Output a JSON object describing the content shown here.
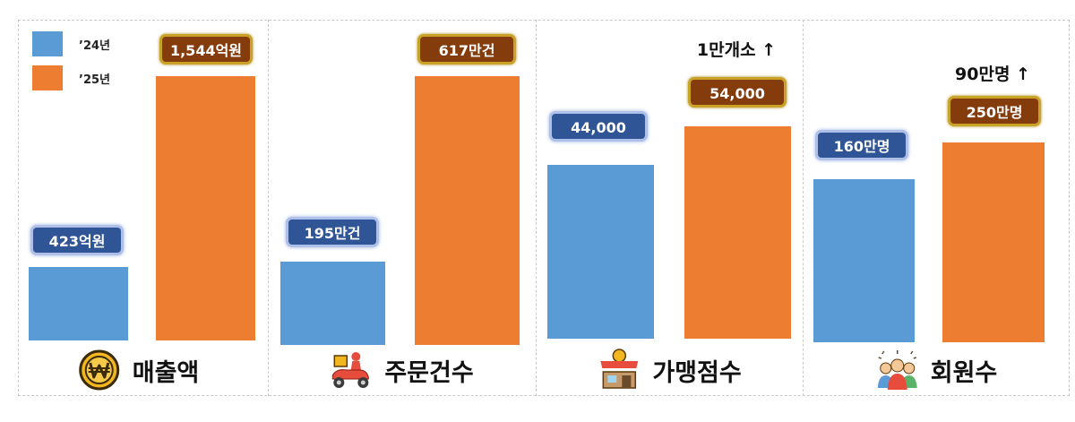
{
  "chart_data": [
    {
      "type": "bar",
      "title": "매출액",
      "categories": [
        "’24년",
        "’25년"
      ],
      "values": [
        423,
        1544
      ],
      "data_labels": [
        "423억원",
        "1,544억원"
      ],
      "increase_label": "",
      "icon": "won-coin-icon"
    },
    {
      "type": "bar",
      "title": "주문건수",
      "categories": [
        "’24년",
        "’25년"
      ],
      "values": [
        195,
        617
      ],
      "data_labels": [
        "195만건",
        "617만건"
      ],
      "increase_label": "",
      "icon": "delivery-scooter-icon"
    },
    {
      "type": "bar",
      "title": "가맹점수",
      "categories": [
        "’24년",
        "’25년"
      ],
      "values": [
        44000,
        54000
      ],
      "data_labels": [
        "44,000",
        "54,000"
      ],
      "increase_label": "1만개소 ↑",
      "icon": "store-icon"
    },
    {
      "type": "bar",
      "title": "회원수",
      "categories": [
        "’24년",
        "’25년"
      ],
      "values": [
        160,
        250
      ],
      "data_labels": [
        "160만명",
        "250만명"
      ],
      "increase_label": "90만명 ↑",
      "icon": "members-icon"
    }
  ],
  "legend": {
    "placement": "top-left",
    "items": [
      {
        "label": "’24년",
        "color": "#5b9bd5"
      },
      {
        "label": "’25년",
        "color": "#ed7d31"
      }
    ]
  },
  "colors": {
    "series_2024": "#5b9bd5",
    "series_2025": "#ed7d31",
    "label_2024_bg": "#2f5597",
    "label_2025_bg": "#843c0c"
  }
}
